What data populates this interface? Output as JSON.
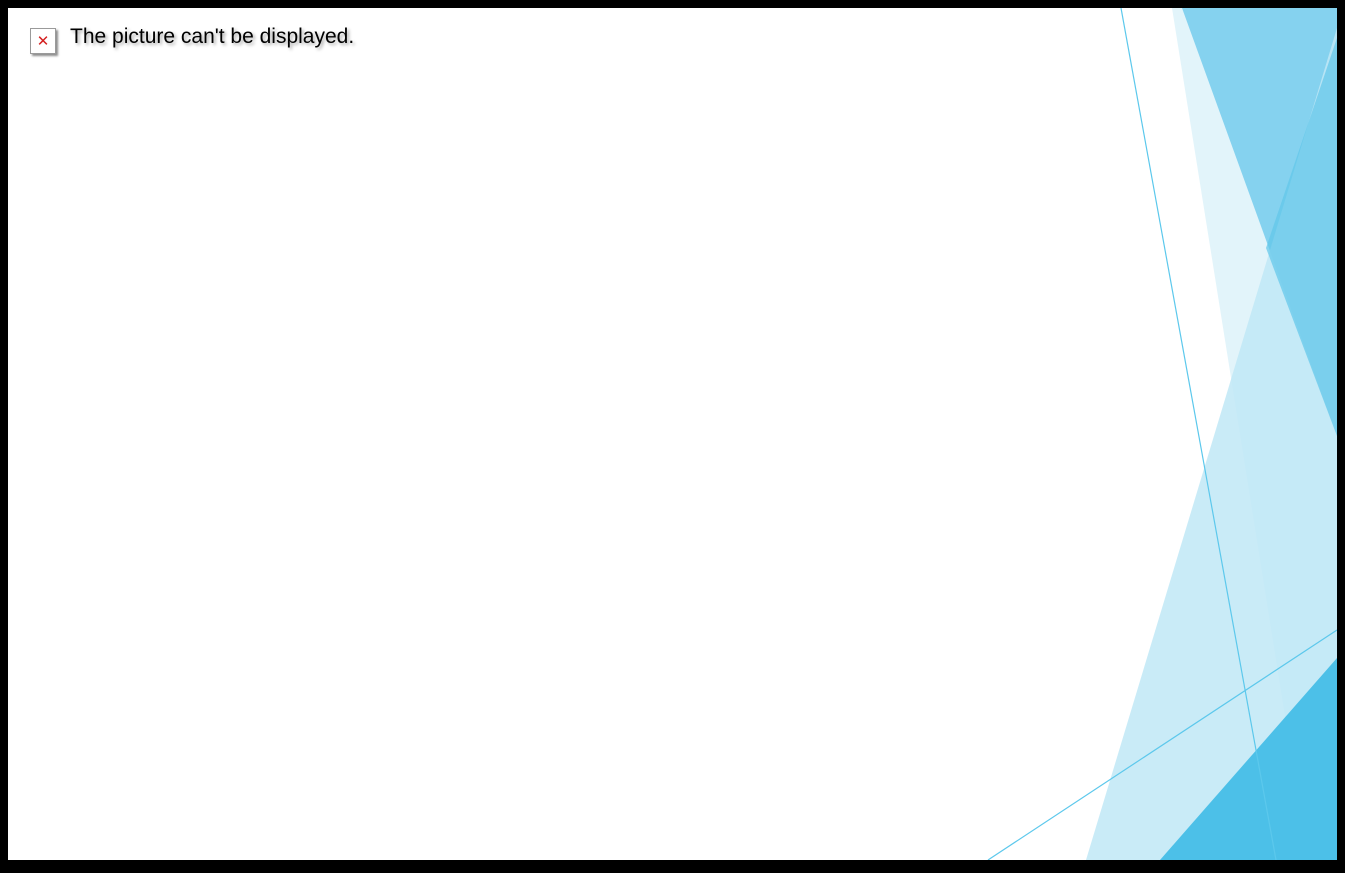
{
  "slide": {
    "placeholder": {
      "icon": "broken-image-icon",
      "message": "The picture can't be displayed."
    },
    "colors": {
      "border": "#000000",
      "background": "#ffffff",
      "accent_dark": "#4cc0e8",
      "accent_mid": "#7fd0ee",
      "accent_light": "#bfe7f6",
      "accent_pale": "#dff3fa",
      "icon_x": "#d42020"
    }
  }
}
